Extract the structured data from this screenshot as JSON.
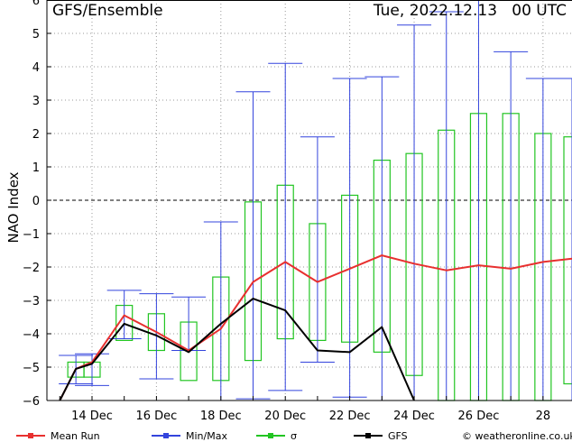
{
  "chart_data": {
    "type": "box-ensemble",
    "title": "GFS/Ensemble",
    "run_label": "Tue, 2022.12.13   00 UTC",
    "ylabel": "NAO Index",
    "xlabel": "",
    "ylim": [
      -6,
      6
    ],
    "yticks": [
      -6,
      -5,
      -4,
      -3,
      -2,
      -1,
      0,
      1,
      2,
      3,
      4,
      5,
      6
    ],
    "xlim": [
      12.6,
      28.9
    ],
    "x_tick_labels": [
      {
        "x": 14,
        "label": "14 Dec"
      },
      {
        "x": 16,
        "label": "16 Dec"
      },
      {
        "x": 18,
        "label": "18 Dec"
      },
      {
        "x": 20,
        "label": "20 Dec"
      },
      {
        "x": 22,
        "label": "22 Dec"
      },
      {
        "x": 24,
        "label": "24 Dec"
      },
      {
        "x": 26,
        "label": "26 Dec"
      },
      {
        "x": 28,
        "label": "28"
      }
    ],
    "x_minor_ticks": [
      13,
      14,
      15,
      16,
      17,
      18,
      19,
      20,
      21,
      22,
      23,
      24,
      25,
      26,
      27,
      28
    ],
    "grid": true,
    "zero_line": "dashed",
    "series": [
      {
        "name": "Mean Run",
        "color": "#e8302f",
        "style": "line",
        "x": [
          13,
          13.5,
          14,
          15,
          16,
          17,
          18,
          19,
          20,
          21,
          22,
          23,
          24,
          25,
          26,
          27,
          28,
          28.9
        ],
        "y": [
          -6.1,
          -5.05,
          -4.85,
          -3.45,
          -3.95,
          -4.5,
          -3.85,
          -2.45,
          -1.85,
          -2.45,
          -2.05,
          -1.65,
          -1.9,
          -2.1,
          -1.95,
          -2.05,
          -1.85,
          -1.75
        ]
      },
      {
        "name": "Min/Max",
        "color": "#3344dd",
        "style": "whisker",
        "x": [
          13.5,
          14,
          15,
          16,
          17,
          18,
          19,
          20,
          21,
          22,
          23,
          24,
          25,
          26,
          27,
          28,
          28.9
        ],
        "min": [
          -5.5,
          -5.55,
          -4.15,
          -5.35,
          -4.5,
          -6.0,
          -5.95,
          -5.7,
          -4.85,
          -5.9,
          -6.0,
          -6.0,
          -6.0,
          -6.0,
          -6.0,
          -6.0,
          -6.0
        ],
        "max": [
          -4.65,
          -4.6,
          -2.7,
          -2.8,
          -2.9,
          -0.65,
          3.25,
          4.1,
          1.9,
          3.65,
          3.7,
          5.25,
          5.65,
          6.0,
          4.45,
          3.65,
          3.65
        ]
      },
      {
        "name": "σ",
        "color": "#22c522",
        "style": "box",
        "x": [
          13.5,
          14,
          15,
          16,
          17,
          18,
          19,
          20,
          21,
          22,
          23,
          24,
          25,
          26,
          27,
          28,
          28.9
        ],
        "low": [
          -5.3,
          -5.3,
          -4.2,
          -4.5,
          -5.4,
          -5.4,
          -4.8,
          -4.15,
          -4.2,
          -4.25,
          -4.55,
          -5.25,
          -6.0,
          -6.0,
          -6.0,
          -6.0,
          -5.5
        ],
        "high": [
          -4.85,
          -4.85,
          -3.15,
          -3.4,
          -3.65,
          -2.3,
          -0.05,
          0.45,
          -0.7,
          0.15,
          1.2,
          1.4,
          2.1,
          2.6,
          2.6,
          2.0,
          1.9
        ]
      },
      {
        "name": "GFS",
        "color": "#000000",
        "style": "line",
        "x": [
          13,
          13.5,
          14,
          15,
          16,
          17,
          18,
          19,
          20,
          21,
          22,
          23,
          24
        ],
        "y": [
          -6.1,
          -5.05,
          -4.9,
          -3.7,
          -4.05,
          -4.55,
          -3.7,
          -2.95,
          -3.3,
          -4.5,
          -4.55,
          -3.8,
          -6.1
        ]
      }
    ]
  },
  "legend": {
    "mean_label": "Mean Run",
    "minmax_label": "Min/Max",
    "sigma_label": "σ",
    "gfs_label": "GFS",
    "mean_color": "#e8302f",
    "minmax_color": "#3344dd",
    "sigma_color": "#22c522",
    "gfs_color": "#000000"
  },
  "credit": "© weatheronline.co.uk"
}
